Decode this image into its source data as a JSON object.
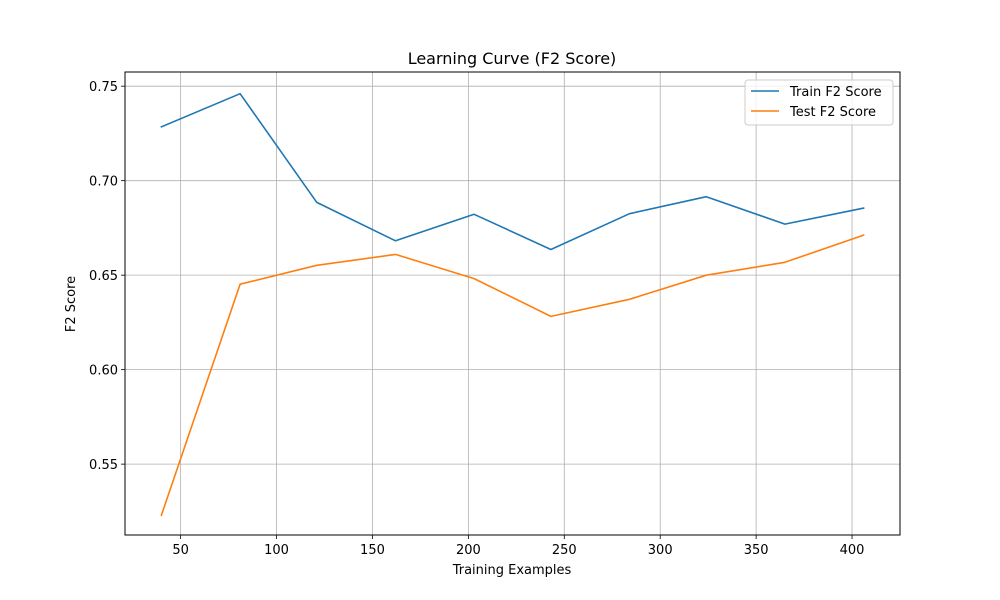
{
  "chart_data": {
    "type": "line",
    "title": "Learning Curve (F2 Score)",
    "xlabel": "Training Examples",
    "ylabel": "F2 Score",
    "xlim": [
      21,
      425
    ],
    "ylim": [
      0.5125,
      0.7575
    ],
    "xticks": [
      50,
      100,
      150,
      200,
      250,
      300,
      350,
      400
    ],
    "yticks": [
      0.55,
      0.6,
      0.65,
      0.7,
      0.75
    ],
    "xtick_labels": [
      "50",
      "100",
      "150",
      "200",
      "250",
      "300",
      "350",
      "400"
    ],
    "ytick_labels": [
      "0.55",
      "0.60",
      "0.65",
      "0.70",
      "0.75"
    ],
    "grid": true,
    "legend_position": "top-right",
    "x": [
      40,
      81,
      121,
      162,
      203,
      243,
      284,
      324,
      365,
      406
    ],
    "series": [
      {
        "name": "Train F2 Score",
        "color": "#1f77b4",
        "values": [
          0.7285,
          0.746,
          0.6885,
          0.6682,
          0.6822,
          0.6636,
          0.6825,
          0.6915,
          0.677,
          0.6855
        ]
      },
      {
        "name": "Test F2 Score",
        "color": "#ff7f0e",
        "values": [
          0.523,
          0.6452,
          0.6552,
          0.661,
          0.6482,
          0.6282,
          0.6372,
          0.65,
          0.6568,
          0.6712
        ]
      }
    ]
  }
}
